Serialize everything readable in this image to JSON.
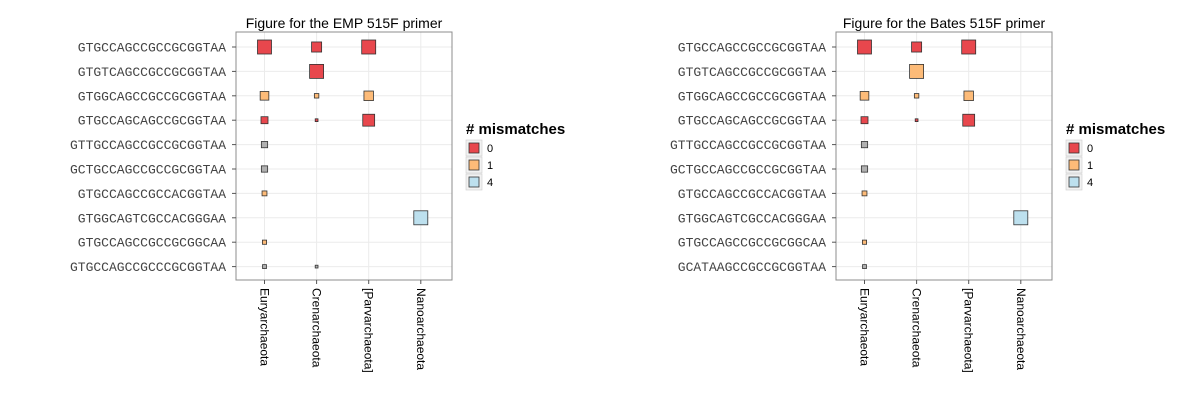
{
  "colors": {
    "mm0": "#e8474d",
    "mm1": "#fdbb78",
    "mm4": "#bde0ee",
    "gray": "#b0b0b0"
  },
  "chart_data": [
    {
      "type": "scatter",
      "title": "Figure for the  EMP 515F primer",
      "xlabel": "",
      "ylabel": "",
      "categories": [
        "Euryarchaeota",
        "Crenarchaeota",
        "[Parvarchaeota]",
        "Nanoarchaeota"
      ],
      "y_categories": [
        "GTGCCAGCCGCCGCGGTAA",
        "GTGTCAGCCGCCGCGGTAA",
        "GTGGCAGCCGCCGCGGTAA",
        "GTGCCAGCAGCCGCGGTAA",
        "GTTGCCAGCCGCCGCGGTAA",
        "GCTGCCAGCCGCCGCGGTAA",
        "GTGCCAGCCGCCACGGTAA",
        "GTGGCAGTCGCCACGGGAA",
        "GTGCCAGCCGCCGCGGCAA",
        "GTGCCAGCCGCCCGCGGTAA"
      ],
      "legend": {
        "title": "# mismatches",
        "entries": [
          "0",
          "1",
          "4"
        ],
        "placement": "right"
      },
      "points": [
        {
          "x": "Euryarchaeota",
          "y": "GTGCCAGCCGCCGCGGTAA",
          "size": 1.0,
          "mismatch": "0"
        },
        {
          "x": "Crenarchaeota",
          "y": "GTGCCAGCCGCCGCGGTAA",
          "size": 0.72,
          "mismatch": "0"
        },
        {
          "x": "[Parvarchaeota]",
          "y": "GTGCCAGCCGCCGCGGTAA",
          "size": 1.0,
          "mismatch": "0"
        },
        {
          "x": "Crenarchaeota",
          "y": "GTGTCAGCCGCCGCGGTAA",
          "size": 1.0,
          "mismatch": "0"
        },
        {
          "x": "Euryarchaeota",
          "y": "GTGGCAGCCGCCGCGGTAA",
          "size": 0.62,
          "mismatch": "1"
        },
        {
          "x": "Crenarchaeota",
          "y": "GTGGCAGCCGCCGCGGTAA",
          "size": 0.32,
          "mismatch": "1"
        },
        {
          "x": "[Parvarchaeota]",
          "y": "GTGGCAGCCGCCGCGGTAA",
          "size": 0.68,
          "mismatch": "1"
        },
        {
          "x": "Euryarchaeota",
          "y": "GTGCCAGCAGCCGCGGTAA",
          "size": 0.5,
          "mismatch": "0"
        },
        {
          "x": "Crenarchaeota",
          "y": "GTGCCAGCAGCCGCGGTAA",
          "size": 0.2,
          "mismatch": "0"
        },
        {
          "x": "[Parvarchaeota]",
          "y": "GTGCCAGCAGCCGCGGTAA",
          "size": 0.85,
          "mismatch": "0"
        },
        {
          "x": "Euryarchaeota",
          "y": "GTTGCCAGCCGCCGCGGTAA",
          "size": 0.45,
          "mismatch": "none"
        },
        {
          "x": "Euryarchaeota",
          "y": "GCTGCCAGCCGCCGCGGTAA",
          "size": 0.45,
          "mismatch": "none"
        },
        {
          "x": "Euryarchaeota",
          "y": "GTGCCAGCCGCCACGGTAA",
          "size": 0.35,
          "mismatch": "1"
        },
        {
          "x": "Nanoarchaeota",
          "y": "GTGGCAGTCGCCACGGGAA",
          "size": 1.0,
          "mismatch": "4"
        },
        {
          "x": "Euryarchaeota",
          "y": "GTGCCAGCCGCCGCGGCAA",
          "size": 0.3,
          "mismatch": "1"
        },
        {
          "x": "Euryarchaeota",
          "y": "GTGCCAGCCGCCCGCGGTAA",
          "size": 0.28,
          "mismatch": "none"
        },
        {
          "x": "Crenarchaeota",
          "y": "GTGCCAGCCGCCCGCGGTAA",
          "size": 0.2,
          "mismatch": "none"
        }
      ]
    },
    {
      "type": "scatter",
      "title": "Figure for the  Bates 515F primer",
      "xlabel": "",
      "ylabel": "",
      "categories": [
        "Euryarchaeota",
        "Crenarchaeota",
        "[Parvarchaeota]",
        "Nanoarchaeota"
      ],
      "y_categories": [
        "GTGCCAGCCGCCGCGGTAA",
        "GTGTCAGCCGCCGCGGTAA",
        "GTGGCAGCCGCCGCGGTAA",
        "GTGCCAGCAGCCGCGGTAA",
        "GTTGCCAGCCGCCGCGGTAA",
        "GCTGCCAGCCGCCGCGGTAA",
        "GTGCCAGCCGCCACGGTAA",
        "GTGGCAGTCGCCACGGGAA",
        "GTGCCAGCCGCCGCGGCAA",
        "GCATAAGCCGCCGCGGTAA"
      ],
      "legend": {
        "title": "# mismatches",
        "entries": [
          "0",
          "1",
          "4"
        ],
        "placement": "right"
      },
      "points": [
        {
          "x": "Euryarchaeota",
          "y": "GTGCCAGCCGCCGCGGTAA",
          "size": 1.0,
          "mismatch": "0"
        },
        {
          "x": "Crenarchaeota",
          "y": "GTGCCAGCCGCCGCGGTAA",
          "size": 0.72,
          "mismatch": "0"
        },
        {
          "x": "[Parvarchaeota]",
          "y": "GTGCCAGCCGCCGCGGTAA",
          "size": 1.0,
          "mismatch": "0"
        },
        {
          "x": "Crenarchaeota",
          "y": "GTGTCAGCCGCCGCGGTAA",
          "size": 1.0,
          "mismatch": "1"
        },
        {
          "x": "Euryarchaeota",
          "y": "GTGGCAGCCGCCGCGGTAA",
          "size": 0.62,
          "mismatch": "1"
        },
        {
          "x": "Crenarchaeota",
          "y": "GTGGCAGCCGCCGCGGTAA",
          "size": 0.32,
          "mismatch": "1"
        },
        {
          "x": "[Parvarchaeota]",
          "y": "GTGGCAGCCGCCGCGGTAA",
          "size": 0.68,
          "mismatch": "1"
        },
        {
          "x": "Euryarchaeota",
          "y": "GTGCCAGCAGCCGCGGTAA",
          "size": 0.5,
          "mismatch": "0"
        },
        {
          "x": "Crenarchaeota",
          "y": "GTGCCAGCAGCCGCGGTAA",
          "size": 0.2,
          "mismatch": "0"
        },
        {
          "x": "[Parvarchaeota]",
          "y": "GTGCCAGCAGCCGCGGTAA",
          "size": 0.85,
          "mismatch": "0"
        },
        {
          "x": "Euryarchaeota",
          "y": "GTTGCCAGCCGCCGCGGTAA",
          "size": 0.45,
          "mismatch": "none"
        },
        {
          "x": "Euryarchaeota",
          "y": "GCTGCCAGCCGCCGCGGTAA",
          "size": 0.45,
          "mismatch": "none"
        },
        {
          "x": "Euryarchaeota",
          "y": "GTGCCAGCCGCCACGGTAA",
          "size": 0.35,
          "mismatch": "1"
        },
        {
          "x": "Nanoarchaeota",
          "y": "GTGGCAGTCGCCACGGGAA",
          "size": 1.0,
          "mismatch": "4"
        },
        {
          "x": "Euryarchaeota",
          "y": "GTGCCAGCCGCCGCGGCAA",
          "size": 0.3,
          "mismatch": "1"
        },
        {
          "x": "Euryarchaeota",
          "y": "GCATAAGCCGCCGCGGTAA",
          "size": 0.28,
          "mismatch": "none"
        }
      ]
    }
  ]
}
